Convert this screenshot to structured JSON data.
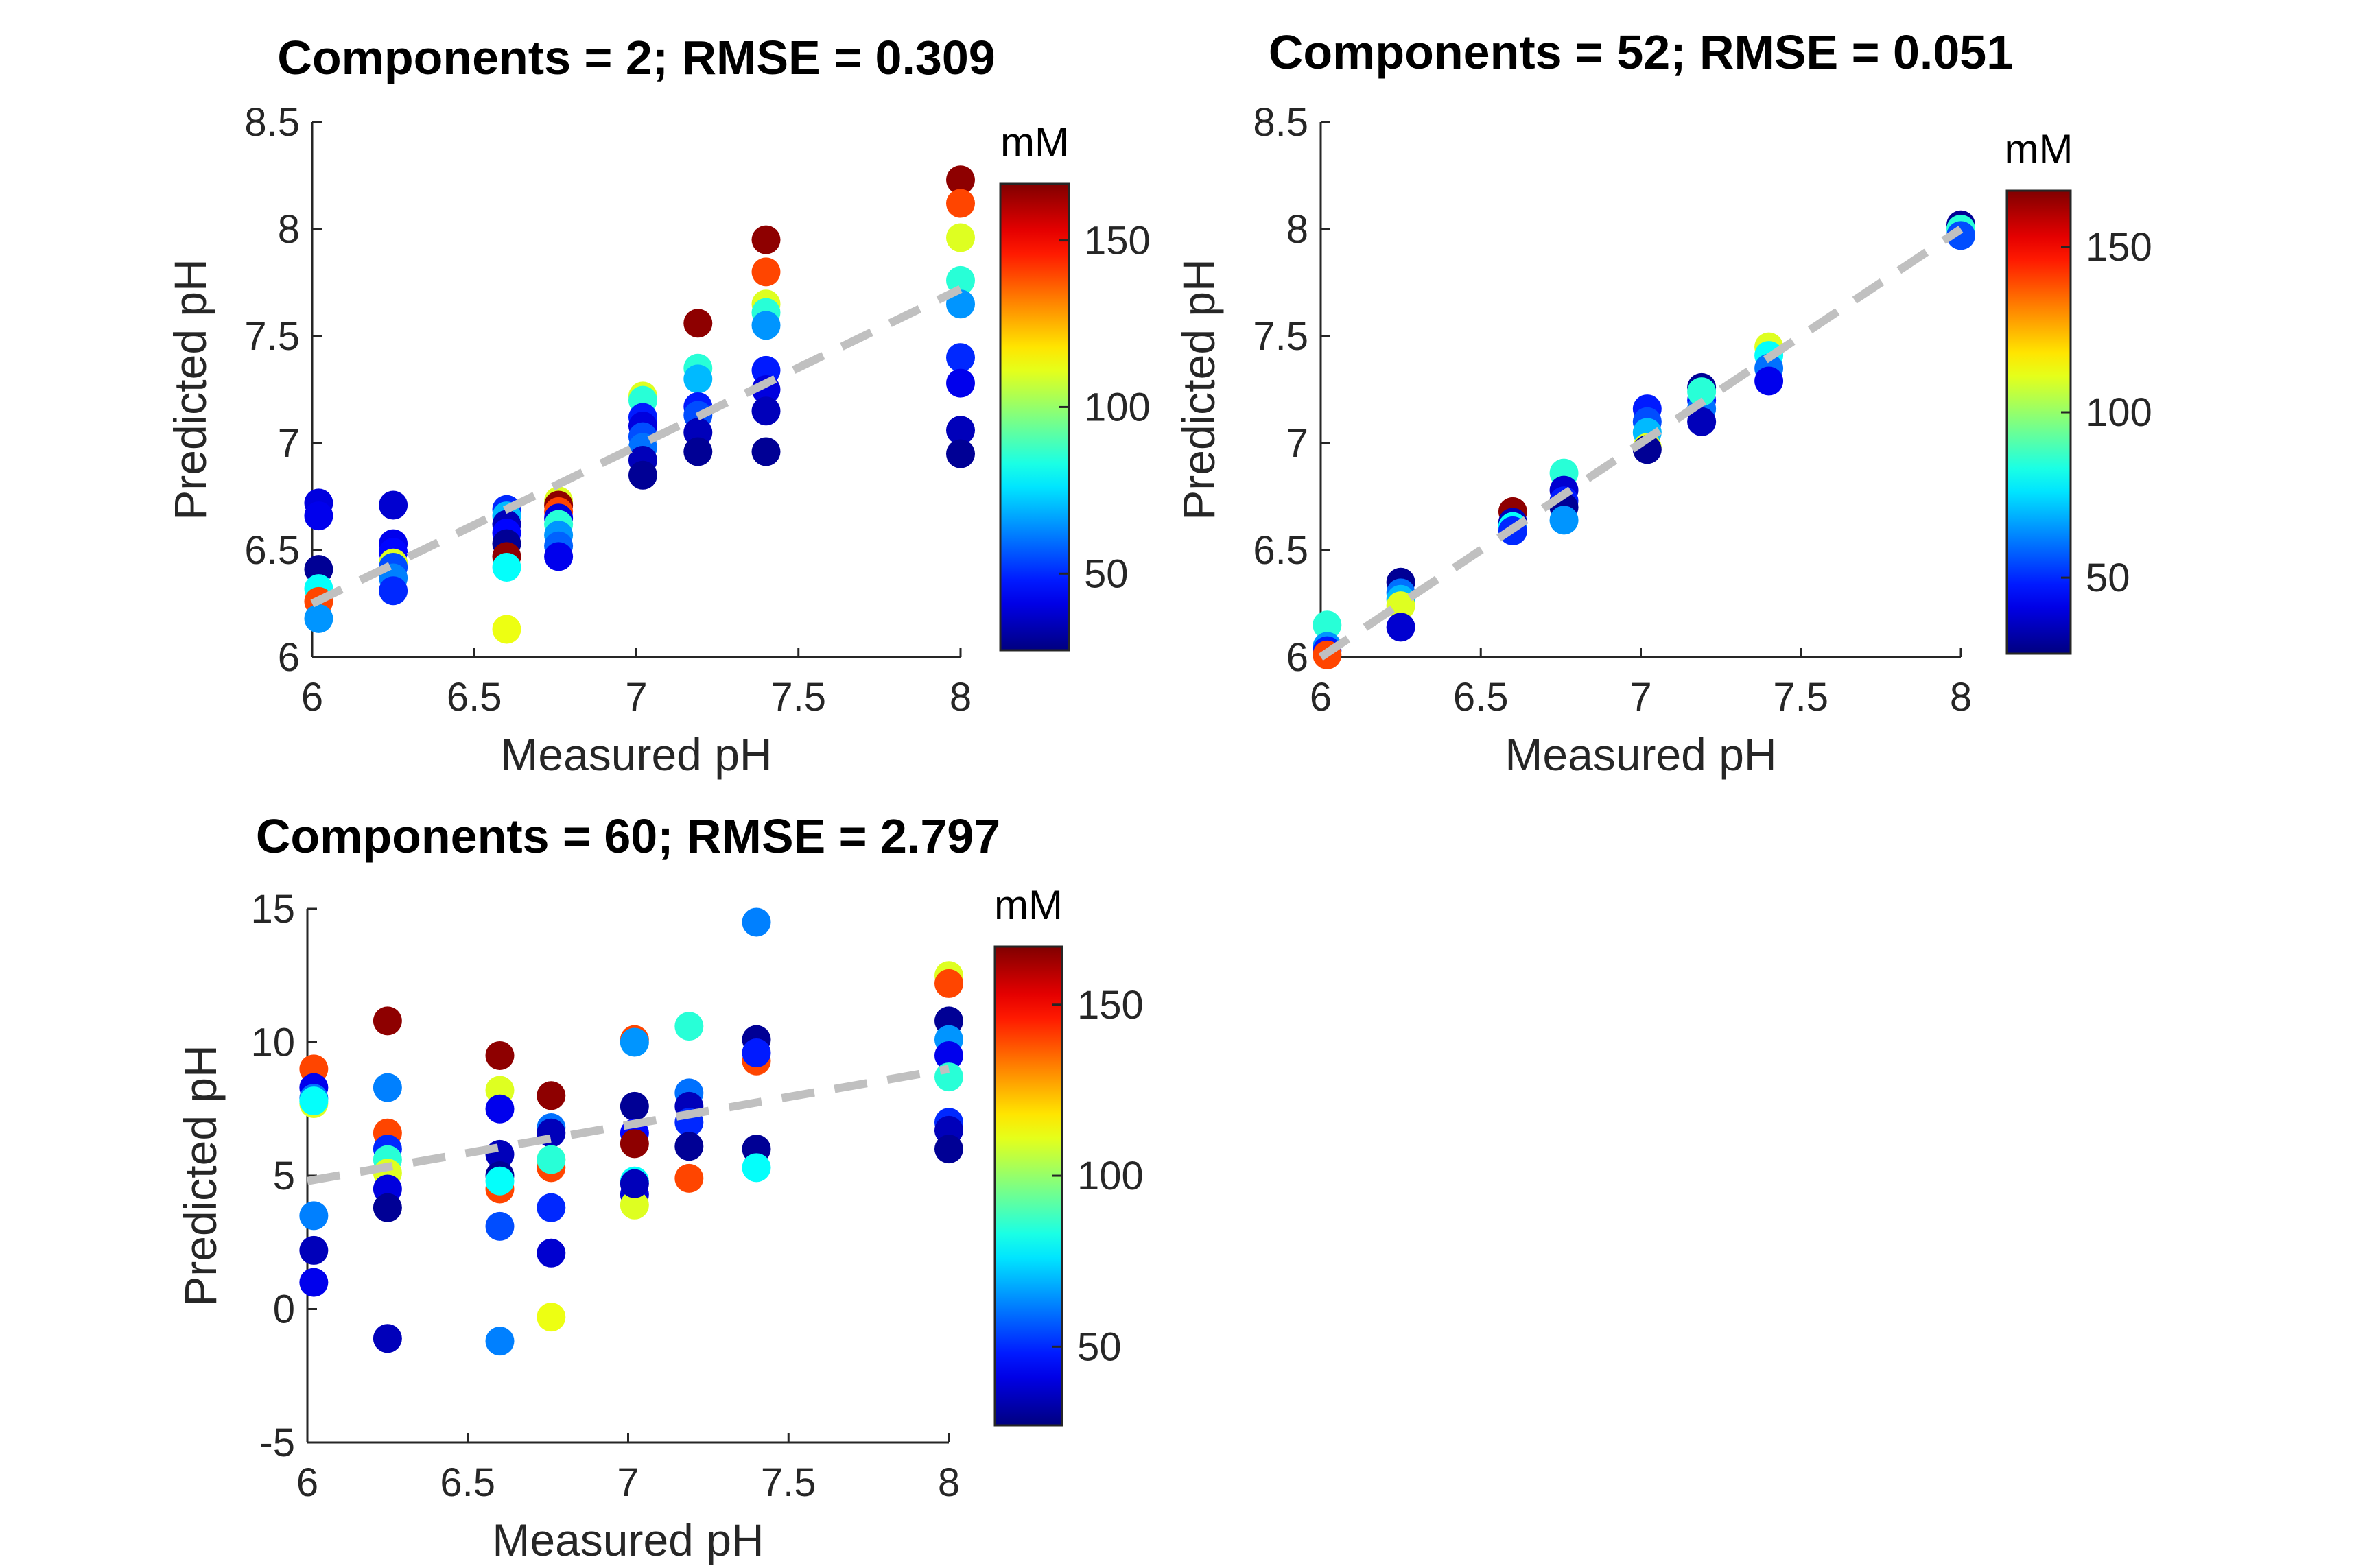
{
  "figure": {
    "background": "#ffffff"
  },
  "colormap": "jet",
  "colorbar_label": "mM",
  "panel_titles": [
    "Components = 2; RMSE = 0.309",
    "Components = 52; RMSE = 0.051",
    "Components = 60; RMSE = 2.797"
  ],
  "chart_data": [
    {
      "type": "scatter",
      "title": "Components = 2; RMSE = 0.309",
      "xlabel": "Measured pH",
      "ylabel": "Predicted pH",
      "xlim": [
        6,
        8
      ],
      "ylim": [
        6,
        8.5
      ],
      "xticks": [
        "6",
        "6.5",
        "7",
        "7.5",
        "8"
      ],
      "xtick_values": [
        6,
        6.5,
        7,
        7.5,
        8
      ],
      "yticks": [
        "6",
        "6.5",
        "7",
        "7.5",
        "8",
        "8.5"
      ],
      "ytick_values": [
        6,
        6.5,
        7,
        7.5,
        8,
        8.5
      ],
      "fit_line": {
        "x": [
          6,
          8
        ],
        "y": [
          6.25,
          7.72
        ],
        "color": "#c0c0c0",
        "style": "dashed"
      },
      "colorbar": {
        "label": "mM",
        "clim": [
          27,
          167
        ],
        "ticks": [
          "50",
          "100",
          "150"
        ],
        "tick_values": [
          50,
          100,
          150
        ]
      },
      "points": [
        {
          "x": 6.02,
          "y": 6.72,
          "c": 40
        },
        {
          "x": 6.02,
          "y": 6.66,
          "c": 42
        },
        {
          "x": 6.02,
          "y": 6.41,
          "c": 30
        },
        {
          "x": 6.02,
          "y": 6.32,
          "c": 80
        },
        {
          "x": 6.02,
          "y": 6.26,
          "c": 140
        },
        {
          "x": 6.02,
          "y": 6.18,
          "c": 65
        },
        {
          "x": 6.25,
          "y": 6.71,
          "c": 38
        },
        {
          "x": 6.25,
          "y": 6.53,
          "c": 42
        },
        {
          "x": 6.25,
          "y": 6.49,
          "c": 45
        },
        {
          "x": 6.25,
          "y": 6.44,
          "c": 110
        },
        {
          "x": 6.25,
          "y": 6.42,
          "c": 55
        },
        {
          "x": 6.25,
          "y": 6.37,
          "c": 62
        },
        {
          "x": 6.25,
          "y": 6.31,
          "c": 50
        },
        {
          "x": 6.6,
          "y": 6.69,
          "c": 50
        },
        {
          "x": 6.6,
          "y": 6.66,
          "c": 70
        },
        {
          "x": 6.6,
          "y": 6.62,
          "c": 35
        },
        {
          "x": 6.6,
          "y": 6.58,
          "c": 45
        },
        {
          "x": 6.6,
          "y": 6.53,
          "c": 30
        },
        {
          "x": 6.6,
          "y": 6.47,
          "c": 165
        },
        {
          "x": 6.6,
          "y": 6.42,
          "c": 80
        },
        {
          "x": 6.6,
          "y": 6.13,
          "c": 112
        },
        {
          "x": 6.76,
          "y": 6.73,
          "c": 110
        },
        {
          "x": 6.76,
          "y": 6.71,
          "c": 165
        },
        {
          "x": 6.76,
          "y": 6.68,
          "c": 140
        },
        {
          "x": 6.76,
          "y": 6.65,
          "c": 40
        },
        {
          "x": 6.76,
          "y": 6.62,
          "c": 85
        },
        {
          "x": 6.76,
          "y": 6.57,
          "c": 65
        },
        {
          "x": 6.76,
          "y": 6.52,
          "c": 58
        },
        {
          "x": 6.76,
          "y": 6.47,
          "c": 42
        },
        {
          "x": 7.02,
          "y": 7.22,
          "c": 110
        },
        {
          "x": 7.02,
          "y": 7.2,
          "c": 85
        },
        {
          "x": 7.02,
          "y": 7.12,
          "c": 48
        },
        {
          "x": 7.02,
          "y": 7.08,
          "c": 40
        },
        {
          "x": 7.02,
          "y": 7.03,
          "c": 55
        },
        {
          "x": 7.02,
          "y": 6.98,
          "c": 60
        },
        {
          "x": 7.02,
          "y": 6.92,
          "c": 35
        },
        {
          "x": 7.02,
          "y": 6.85,
          "c": 30
        },
        {
          "x": 7.19,
          "y": 7.56,
          "c": 165
        },
        {
          "x": 7.19,
          "y": 7.35,
          "c": 85
        },
        {
          "x": 7.19,
          "y": 7.3,
          "c": 70
        },
        {
          "x": 7.19,
          "y": 7.17,
          "c": 48
        },
        {
          "x": 7.19,
          "y": 7.13,
          "c": 55
        },
        {
          "x": 7.19,
          "y": 7.05,
          "c": 35
        },
        {
          "x": 7.19,
          "y": 6.96,
          "c": 30
        },
        {
          "x": 7.4,
          "y": 7.95,
          "c": 165
        },
        {
          "x": 7.4,
          "y": 7.8,
          "c": 140
        },
        {
          "x": 7.4,
          "y": 7.65,
          "c": 110
        },
        {
          "x": 7.4,
          "y": 7.61,
          "c": 85
        },
        {
          "x": 7.4,
          "y": 7.55,
          "c": 65
        },
        {
          "x": 7.4,
          "y": 7.34,
          "c": 48
        },
        {
          "x": 7.4,
          "y": 7.25,
          "c": 40
        },
        {
          "x": 7.4,
          "y": 7.15,
          "c": 35
        },
        {
          "x": 7.4,
          "y": 6.96,
          "c": 30
        },
        {
          "x": 8.0,
          "y": 8.23,
          "c": 165
        },
        {
          "x": 8.0,
          "y": 8.12,
          "c": 140
        },
        {
          "x": 8.0,
          "y": 7.96,
          "c": 110
        },
        {
          "x": 8.0,
          "y": 7.76,
          "c": 85
        },
        {
          "x": 8.0,
          "y": 7.65,
          "c": 65
        },
        {
          "x": 8.0,
          "y": 7.4,
          "c": 50
        },
        {
          "x": 8.0,
          "y": 7.28,
          "c": 42
        },
        {
          "x": 8.0,
          "y": 7.06,
          "c": 35
        },
        {
          "x": 8.0,
          "y": 6.95,
          "c": 30
        }
      ]
    },
    {
      "type": "scatter",
      "title": "Components = 52; RMSE = 0.051",
      "xlabel": "Measured pH",
      "ylabel": "Predicted pH",
      "xlim": [
        6,
        8
      ],
      "ylim": [
        6,
        8.5
      ],
      "xticks": [
        "6",
        "6.5",
        "7",
        "7.5",
        "8"
      ],
      "xtick_values": [
        6,
        6.5,
        7,
        7.5,
        8
      ],
      "yticks": [
        "6",
        "6.5",
        "7",
        "7.5",
        "8",
        "8.5"
      ],
      "ytick_values": [
        6,
        6.5,
        7,
        7.5,
        8,
        8.5
      ],
      "fit_line": {
        "x": [
          6,
          8
        ],
        "y": [
          6,
          8
        ],
        "color": "#c0c0c0",
        "style": "dashed"
      },
      "colorbar": {
        "label": "mM",
        "clim": [
          27,
          167
        ],
        "ticks": [
          "50",
          "100",
          "150"
        ],
        "tick_values": [
          50,
          100,
          150
        ]
      },
      "points": [
        {
          "x": 6.02,
          "y": 6.15,
          "c": 85
        },
        {
          "x": 6.02,
          "y": 6.05,
          "c": 65
        },
        {
          "x": 6.02,
          "y": 6.03,
          "c": 48
        },
        {
          "x": 6.02,
          "y": 6.01,
          "c": 140
        },
        {
          "x": 6.25,
          "y": 6.35,
          "c": 30
        },
        {
          "x": 6.25,
          "y": 6.3,
          "c": 60
        },
        {
          "x": 6.25,
          "y": 6.27,
          "c": 70
        },
        {
          "x": 6.25,
          "y": 6.24,
          "c": 110
        },
        {
          "x": 6.25,
          "y": 6.14,
          "c": 38
        },
        {
          "x": 6.6,
          "y": 6.68,
          "c": 165
        },
        {
          "x": 6.6,
          "y": 6.63,
          "c": 35
        },
        {
          "x": 6.6,
          "y": 6.61,
          "c": 80
        },
        {
          "x": 6.6,
          "y": 6.59,
          "c": 50
        },
        {
          "x": 6.76,
          "y": 6.86,
          "c": 85
        },
        {
          "x": 6.76,
          "y": 6.78,
          "c": 38
        },
        {
          "x": 6.76,
          "y": 6.73,
          "c": 48
        },
        {
          "x": 6.76,
          "y": 6.7,
          "c": 30
        },
        {
          "x": 6.76,
          "y": 6.64,
          "c": 65
        },
        {
          "x": 7.02,
          "y": 7.16,
          "c": 48
        },
        {
          "x": 7.02,
          "y": 7.1,
          "c": 55
        },
        {
          "x": 7.02,
          "y": 7.05,
          "c": 70
        },
        {
          "x": 7.02,
          "y": 6.98,
          "c": 110
        },
        {
          "x": 7.02,
          "y": 6.97,
          "c": 30
        },
        {
          "x": 7.19,
          "y": 7.26,
          "c": 30
        },
        {
          "x": 7.19,
          "y": 7.2,
          "c": 48
        },
        {
          "x": 7.19,
          "y": 7.16,
          "c": 60
        },
        {
          "x": 7.19,
          "y": 7.1,
          "c": 35
        },
        {
          "x": 7.19,
          "y": 7.24,
          "c": 85
        },
        {
          "x": 7.4,
          "y": 7.45,
          "c": 110
        },
        {
          "x": 7.4,
          "y": 7.41,
          "c": 80
        },
        {
          "x": 7.4,
          "y": 7.35,
          "c": 60
        },
        {
          "x": 7.4,
          "y": 7.29,
          "c": 42
        },
        {
          "x": 8.0,
          "y": 8.02,
          "c": 30
        },
        {
          "x": 8.0,
          "y": 8.0,
          "c": 85
        },
        {
          "x": 8.0,
          "y": 7.97,
          "c": 55
        }
      ]
    },
    {
      "type": "scatter",
      "title": "Components = 60; RMSE = 2.797",
      "xlabel": "Measured pH",
      "ylabel": "Predicted pH",
      "xlim": [
        6,
        8
      ],
      "ylim": [
        -5,
        15
      ],
      "xticks": [
        "6",
        "6.5",
        "7",
        "7.5",
        "8"
      ],
      "xtick_values": [
        6,
        6.5,
        7,
        7.5,
        8
      ],
      "yticks": [
        "-5",
        "0",
        "5",
        "10",
        "15"
      ],
      "ytick_values": [
        -5,
        0,
        5,
        10,
        15
      ],
      "fit_line": {
        "x": [
          6,
          8
        ],
        "y": [
          4.8,
          9.0
        ],
        "color": "#c0c0c0",
        "style": "dashed"
      },
      "colorbar": {
        "label": "mM",
        "clim": [
          27,
          167
        ],
        "ticks": [
          "50",
          "100",
          "150"
        ],
        "tick_values": [
          50,
          100,
          150
        ]
      },
      "points": [
        {
          "x": 6.02,
          "y": 9.0,
          "c": 140
        },
        {
          "x": 6.02,
          "y": 8.3,
          "c": 42
        },
        {
          "x": 6.02,
          "y": 7.9,
          "c": 60
        },
        {
          "x": 6.02,
          "y": 7.7,
          "c": 110
        },
        {
          "x": 6.02,
          "y": 7.8,
          "c": 80
        },
        {
          "x": 6.02,
          "y": 3.5,
          "c": 62
        },
        {
          "x": 6.02,
          "y": 2.2,
          "c": 35
        },
        {
          "x": 6.02,
          "y": 1.0,
          "c": 42
        },
        {
          "x": 6.25,
          "y": 10.8,
          "c": 165
        },
        {
          "x": 6.25,
          "y": 8.3,
          "c": 62
        },
        {
          "x": 6.25,
          "y": 6.6,
          "c": 140
        },
        {
          "x": 6.25,
          "y": 6.0,
          "c": 50
        },
        {
          "x": 6.25,
          "y": 5.6,
          "c": 85
        },
        {
          "x": 6.25,
          "y": 5.1,
          "c": 110
        },
        {
          "x": 6.25,
          "y": 4.5,
          "c": 40
        },
        {
          "x": 6.25,
          "y": 3.8,
          "c": 30
        },
        {
          "x": 6.25,
          "y": -1.1,
          "c": 35
        },
        {
          "x": 6.6,
          "y": 9.5,
          "c": 165
        },
        {
          "x": 6.6,
          "y": 8.2,
          "c": 110
        },
        {
          "x": 6.6,
          "y": 7.5,
          "c": 42
        },
        {
          "x": 6.6,
          "y": 5.8,
          "c": 35
        },
        {
          "x": 6.6,
          "y": 5.0,
          "c": 30
        },
        {
          "x": 6.6,
          "y": 4.5,
          "c": 140
        },
        {
          "x": 6.6,
          "y": 4.8,
          "c": 80
        },
        {
          "x": 6.6,
          "y": 3.1,
          "c": 55
        },
        {
          "x": 6.6,
          "y": -1.2,
          "c": 62
        },
        {
          "x": 6.76,
          "y": 8.0,
          "c": 165
        },
        {
          "x": 6.76,
          "y": 6.8,
          "c": 60
        },
        {
          "x": 6.76,
          "y": 6.6,
          "c": 35
        },
        {
          "x": 6.76,
          "y": 5.6,
          "c": 110
        },
        {
          "x": 6.76,
          "y": 5.3,
          "c": 140
        },
        {
          "x": 6.76,
          "y": 5.6,
          "c": 85
        },
        {
          "x": 6.76,
          "y": 3.8,
          "c": 50
        },
        {
          "x": 6.76,
          "y": 2.1,
          "c": 38
        },
        {
          "x": 6.76,
          "y": -0.3,
          "c": 112
        },
        {
          "x": 7.02,
          "y": 10.1,
          "c": 140
        },
        {
          "x": 7.02,
          "y": 10.0,
          "c": 65
        },
        {
          "x": 7.02,
          "y": 7.6,
          "c": 30
        },
        {
          "x": 7.02,
          "y": 6.6,
          "c": 45
        },
        {
          "x": 7.02,
          "y": 6.2,
          "c": 165
        },
        {
          "x": 7.02,
          "y": 4.8,
          "c": 80
        },
        {
          "x": 7.02,
          "y": 4.3,
          "c": 40
        },
        {
          "x": 7.02,
          "y": 3.9,
          "c": 110
        },
        {
          "x": 7.02,
          "y": 4.7,
          "c": 35
        },
        {
          "x": 7.19,
          "y": 10.6,
          "c": 85
        },
        {
          "x": 7.19,
          "y": 8.1,
          "c": 60
        },
        {
          "x": 7.19,
          "y": 7.6,
          "c": 35
        },
        {
          "x": 7.19,
          "y": 7.0,
          "c": 50
        },
        {
          "x": 7.19,
          "y": 6.1,
          "c": 30
        },
        {
          "x": 7.19,
          "y": 4.9,
          "c": 140
        },
        {
          "x": 7.4,
          "y": 14.5,
          "c": 62
        },
        {
          "x": 7.4,
          "y": 10.1,
          "c": 30
        },
        {
          "x": 7.4,
          "y": 9.3,
          "c": 140
        },
        {
          "x": 7.4,
          "y": 9.6,
          "c": 48
        },
        {
          "x": 7.4,
          "y": 6.0,
          "c": 30
        },
        {
          "x": 7.4,
          "y": 5.3,
          "c": 80
        },
        {
          "x": 8.0,
          "y": 12.5,
          "c": 110
        },
        {
          "x": 8.0,
          "y": 12.2,
          "c": 140
        },
        {
          "x": 8.0,
          "y": 10.8,
          "c": 30
        },
        {
          "x": 8.0,
          "y": 10.1,
          "c": 65
        },
        {
          "x": 8.0,
          "y": 9.5,
          "c": 42
        },
        {
          "x": 8.0,
          "y": 8.7,
          "c": 85
        },
        {
          "x": 8.0,
          "y": 7.0,
          "c": 50
        },
        {
          "x": 8.0,
          "y": 6.7,
          "c": 35
        },
        {
          "x": 8.0,
          "y": 6.0,
          "c": 30
        }
      ]
    }
  ]
}
